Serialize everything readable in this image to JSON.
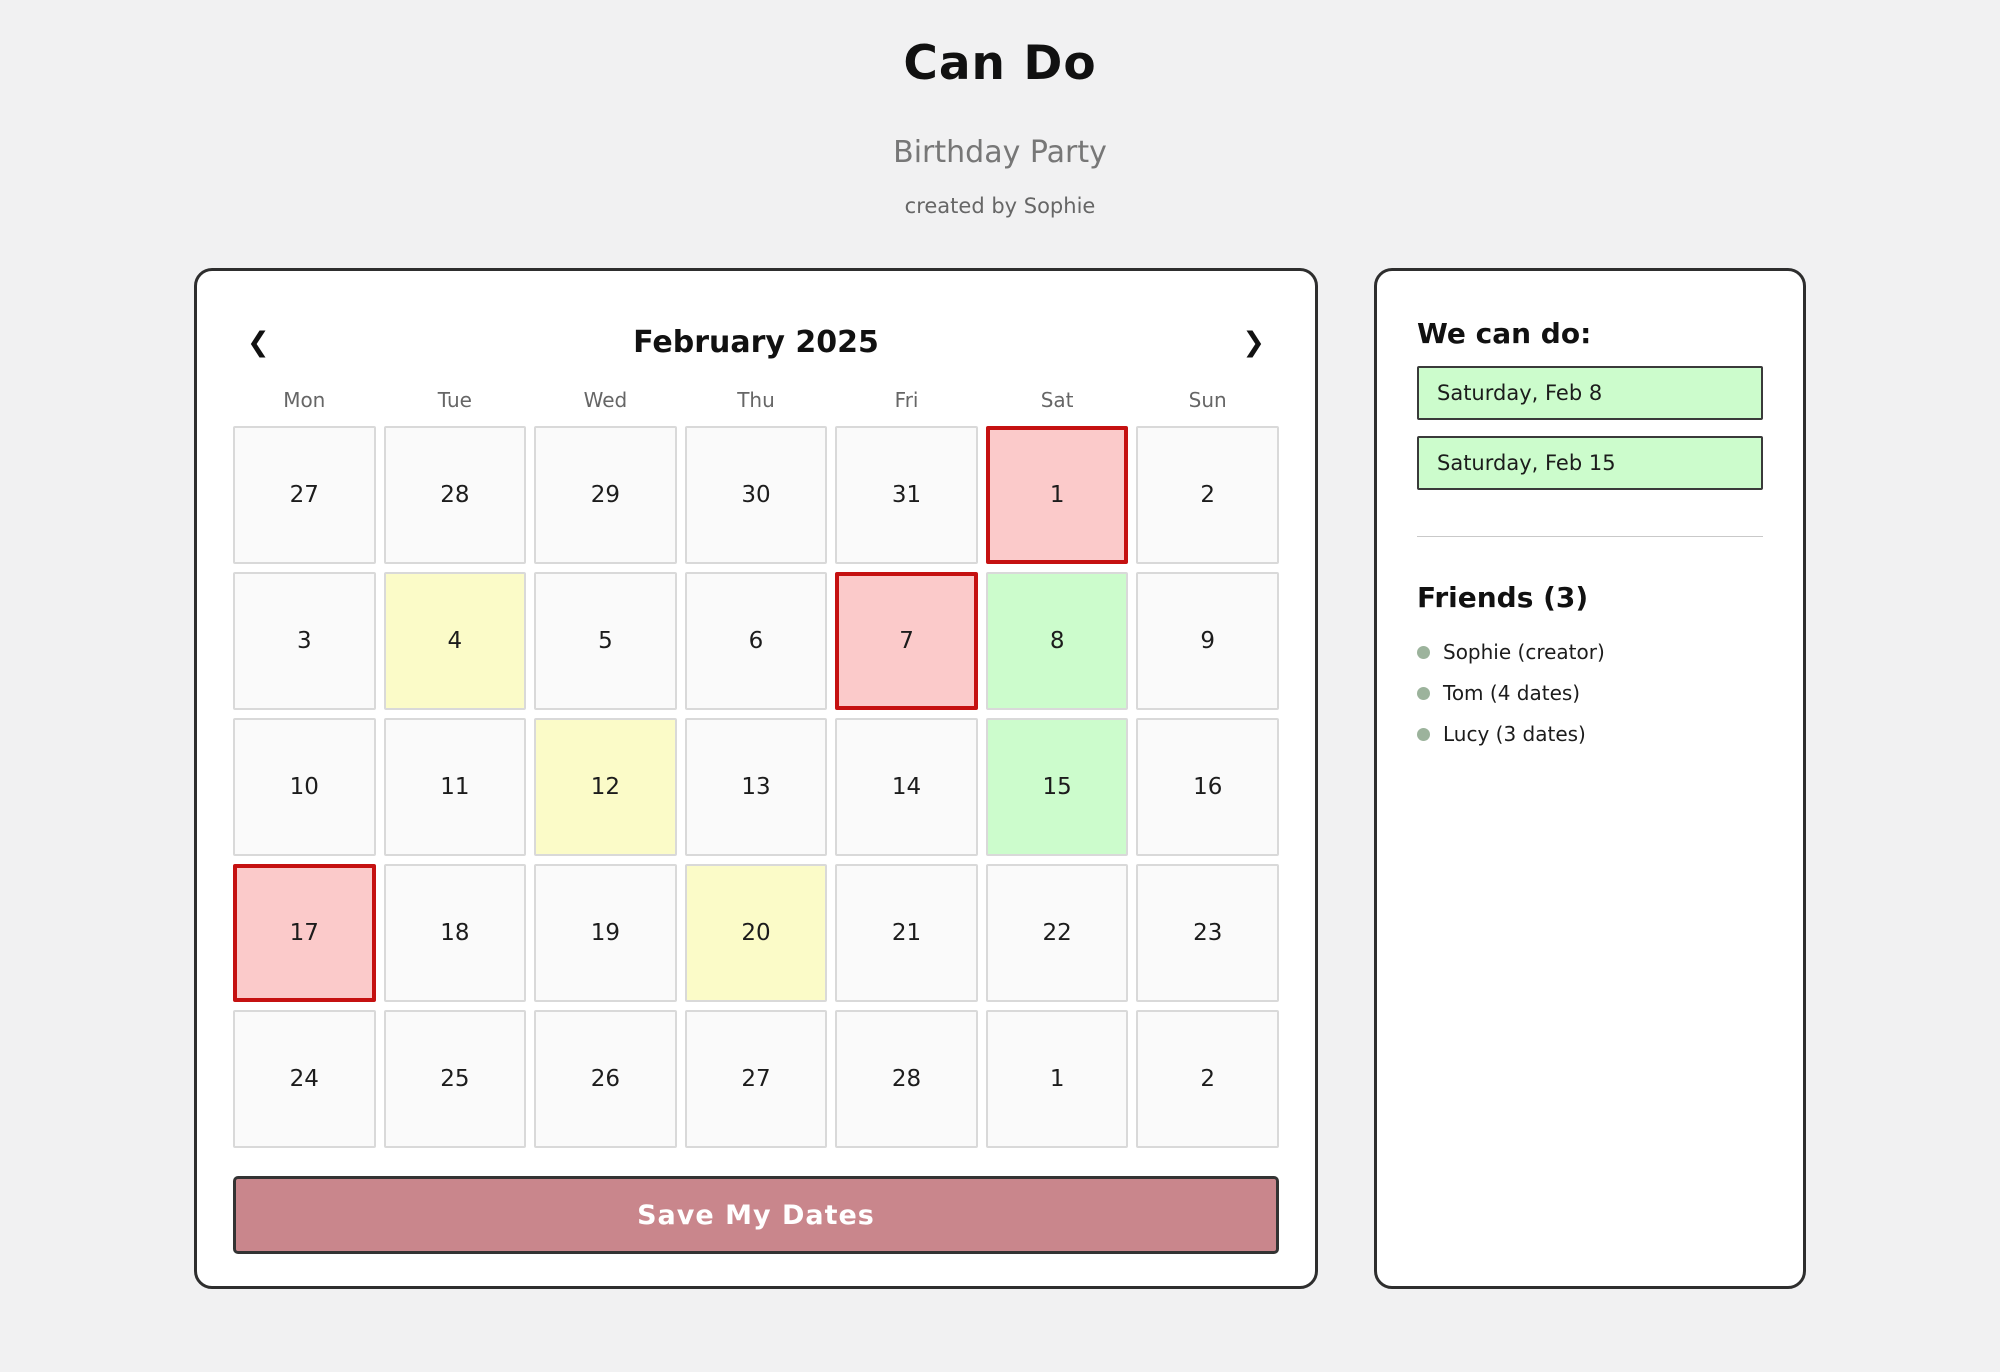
{
  "header": {
    "app_title": "Can Do",
    "event_name": "Birthday Party",
    "created_by": "created by Sophie"
  },
  "calendar": {
    "month_label": "February 2025",
    "prev_icon": "❮",
    "next_icon": "❯",
    "day_headers": [
      "Mon",
      "Tue",
      "Wed",
      "Thu",
      "Fri",
      "Sat",
      "Sun"
    ],
    "cells": [
      {
        "day": "27",
        "state": "none"
      },
      {
        "day": "28",
        "state": "none"
      },
      {
        "day": "29",
        "state": "none"
      },
      {
        "day": "30",
        "state": "none"
      },
      {
        "day": "31",
        "state": "none"
      },
      {
        "day": "1",
        "state": "selected"
      },
      {
        "day": "2",
        "state": "none"
      },
      {
        "day": "3",
        "state": "none"
      },
      {
        "day": "4",
        "state": "maybe"
      },
      {
        "day": "5",
        "state": "none"
      },
      {
        "day": "6",
        "state": "none"
      },
      {
        "day": "7",
        "state": "selected"
      },
      {
        "day": "8",
        "state": "available"
      },
      {
        "day": "9",
        "state": "none"
      },
      {
        "day": "10",
        "state": "none"
      },
      {
        "day": "11",
        "state": "none"
      },
      {
        "day": "12",
        "state": "maybe"
      },
      {
        "day": "13",
        "state": "none"
      },
      {
        "day": "14",
        "state": "none"
      },
      {
        "day": "15",
        "state": "available"
      },
      {
        "day": "16",
        "state": "none"
      },
      {
        "day": "17",
        "state": "selected"
      },
      {
        "day": "18",
        "state": "none"
      },
      {
        "day": "19",
        "state": "none"
      },
      {
        "day": "20",
        "state": "maybe"
      },
      {
        "day": "21",
        "state": "none"
      },
      {
        "day": "22",
        "state": "none"
      },
      {
        "day": "23",
        "state": "none"
      },
      {
        "day": "24",
        "state": "none"
      },
      {
        "day": "25",
        "state": "none"
      },
      {
        "day": "26",
        "state": "none"
      },
      {
        "day": "27",
        "state": "none"
      },
      {
        "day": "28",
        "state": "none"
      },
      {
        "day": "1",
        "state": "none"
      },
      {
        "day": "2",
        "state": "none"
      }
    ],
    "save_button_label": "Save My Dates"
  },
  "sidebar": {
    "can_do_heading": "We can do:",
    "can_do_dates": [
      "Saturday, Feb 8",
      "Saturday, Feb 15"
    ],
    "friends_heading": "Friends (3)",
    "friends": [
      "Sophie (creator)",
      "Tom (4 dates)",
      "Lucy (3 dates)"
    ]
  },
  "colors": {
    "page_bg": "#f1f1f2",
    "card_border": "#2e2e2e",
    "cell_bg": "#fafafa",
    "cell_border": "#d9d9d9",
    "selected_bg": "#fbcaca",
    "selected_border": "#c51111",
    "available_bg": "#ccfccc",
    "maybe_bg": "#fbfbc8",
    "save_button_bg": "#c9868c",
    "bullet": "#9cb39c"
  }
}
